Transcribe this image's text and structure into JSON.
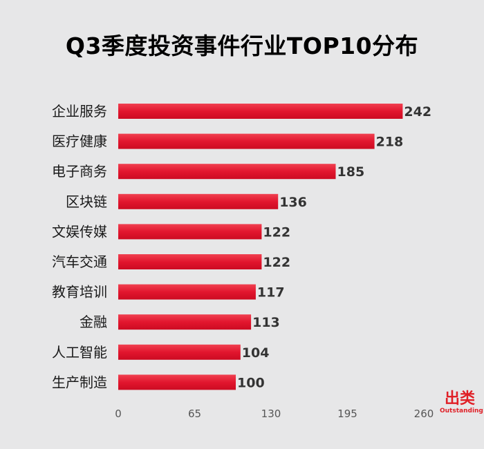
{
  "title": "Q3季度投资事件行业TOP10分布",
  "brand": {
    "cn": "出类",
    "en": "Outstanding"
  },
  "colors": {
    "bar_dark": "#cc0b22",
    "bar_mid": "#e2162e",
    "bar_light": "#f04050",
    "background": "#e7e7e8",
    "brand": "#e01f26"
  },
  "chart_data": {
    "type": "bar",
    "orientation": "horizontal",
    "title": "Q3季度投资事件行业TOP10分布",
    "categories": [
      "企业服务",
      "医疗健康",
      "电子商务",
      "区块链",
      "文娱传媒",
      "汽车交通",
      "教育培训",
      "金融",
      "人工智能",
      "生产制造"
    ],
    "values": [
      242,
      218,
      185,
      136,
      122,
      122,
      117,
      113,
      104,
      100
    ],
    "xlim": [
      0,
      260
    ],
    "xticks": [
      0,
      65,
      130,
      195,
      260
    ],
    "xlabel": "",
    "ylabel": "",
    "grid": false,
    "data_labels": true
  }
}
